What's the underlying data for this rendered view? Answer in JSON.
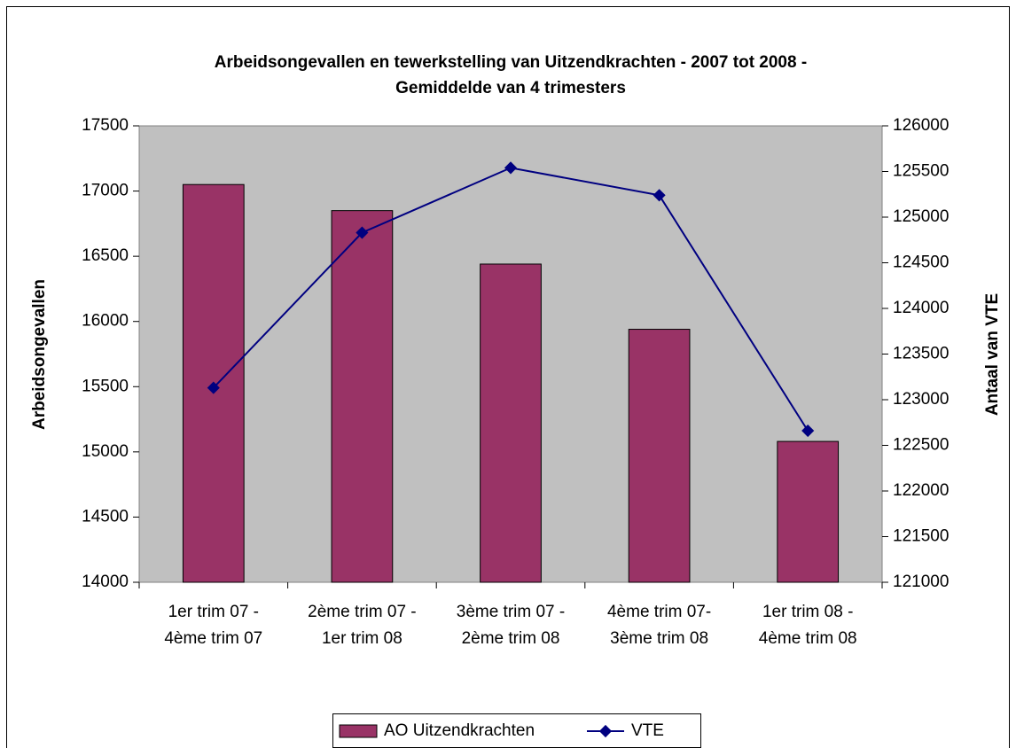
{
  "chart_data": {
    "type": "bar",
    "title": [
      "Arbeidsongevallen en tewerkstelling van Uitzendkrachten - 2007 tot 2008 -",
      "Gemiddelde van 4 trimesters"
    ],
    "y_label": "Arbeidsongevallen",
    "y2_label": "Antaal van VTE",
    "categories": [
      [
        "1er trim 07 -",
        "4ème trim 07"
      ],
      [
        "2ème trim 07 -",
        "1er trim 08"
      ],
      [
        "3ème trim 07 -",
        "2ème trim 08"
      ],
      [
        "4ème trim 07-",
        "3ème trim 08"
      ],
      [
        "1er trim 08 -",
        "4ème trim 08"
      ]
    ],
    "series": [
      {
        "name": "AO Uitzendkrachten",
        "type": "bar",
        "color": "#993366",
        "values": [
          17050,
          16850,
          16440,
          15940,
          15080
        ]
      },
      {
        "name": "VTE",
        "type": "line",
        "axis": "y2",
        "color": "#000080",
        "values": [
          123130,
          124830,
          125540,
          125240,
          122660
        ]
      }
    ],
    "ylim": [
      14000,
      17500
    ],
    "yticks": [
      14000,
      14500,
      15000,
      15500,
      16000,
      16500,
      17000,
      17500
    ],
    "y2lim": [
      121000,
      126000
    ],
    "y2ticks": [
      121000,
      121500,
      122000,
      122500,
      123000,
      123500,
      124000,
      124500,
      125000,
      125500,
      126000
    ],
    "plot_background": "#c0c0c0",
    "legend": "bottom"
  }
}
